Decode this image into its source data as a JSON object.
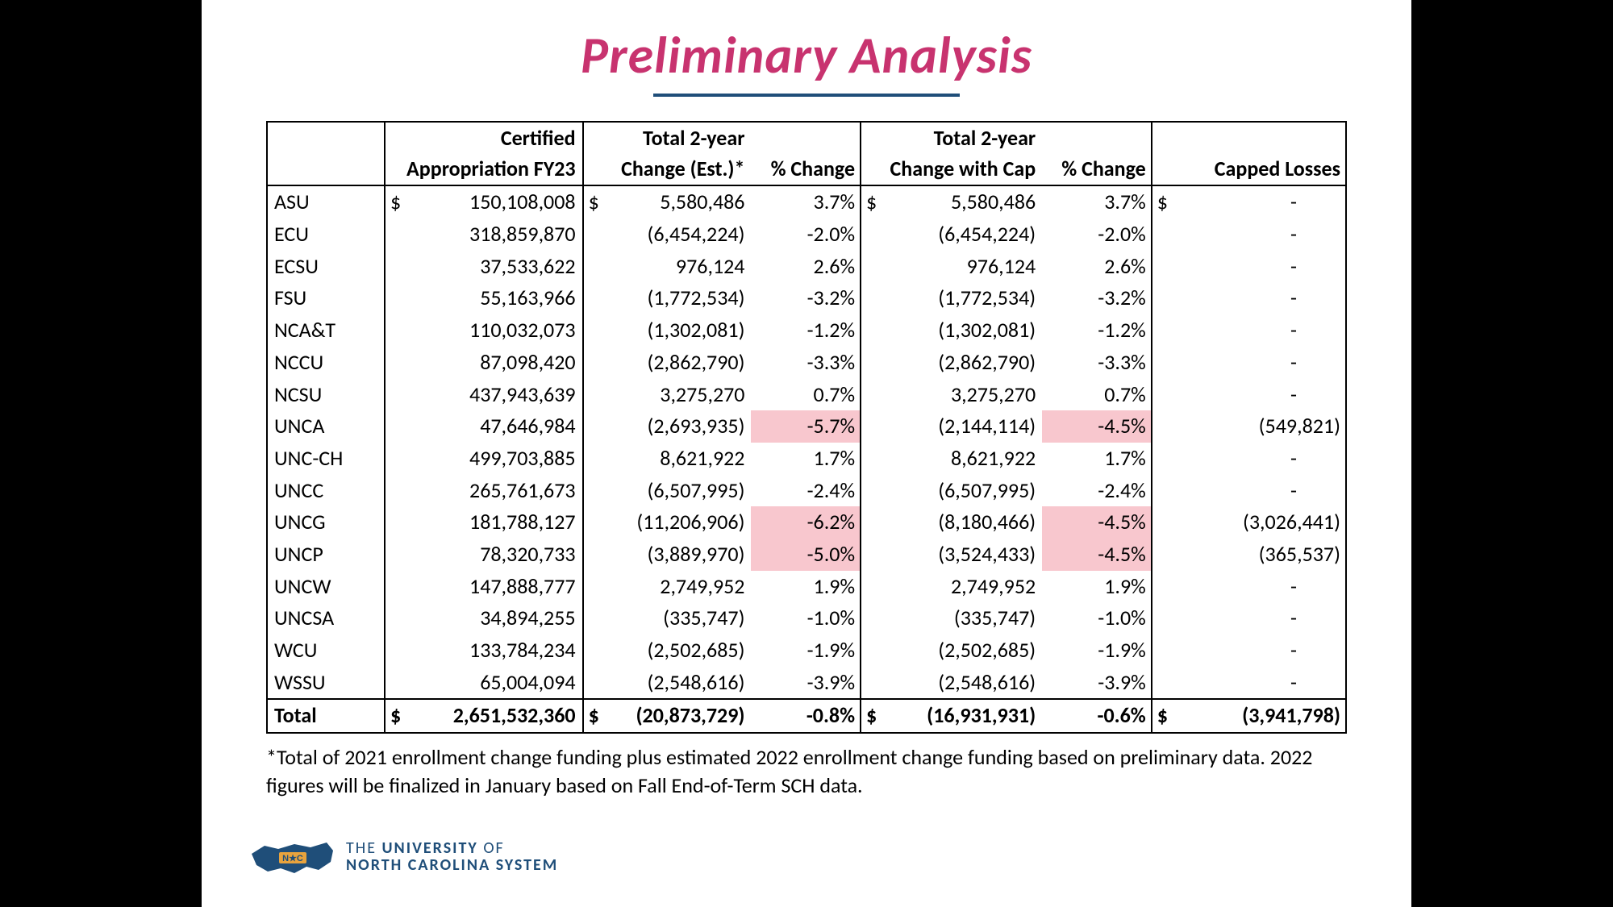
{
  "title": "Preliminary Analysis",
  "colors": {
    "title": "#c8336f",
    "underline": "#1f4e79",
    "highlight": "#f8c7ce",
    "border": "#000000",
    "background": "#ffffff",
    "page_bg": "#000000"
  },
  "table": {
    "headers": {
      "inst": "",
      "appr_line1": "Certified",
      "appr_line2": "Appropriation FY23",
      "chg1_line1": "Total 2-year",
      "chg1_line2": "Change (Est.)*",
      "pct1": "% Change",
      "chg2_line1": "Total 2-year",
      "chg2_line2": "Change with Cap",
      "pct2": "% Change",
      "cap": "Capped Losses"
    },
    "rows": [
      {
        "inst": "ASU",
        "appr": "150,108,008",
        "appr_dollar": true,
        "chg1": "5,580,486",
        "chg1_dollar": true,
        "pct1": "3.7%",
        "pct1_hl": false,
        "chg2": "5,580,486",
        "chg2_dollar": true,
        "pct2": "3.7%",
        "pct2_hl": false,
        "cap": "-",
        "cap_dollar": true
      },
      {
        "inst": "ECU",
        "appr": "318,859,870",
        "chg1": "(6,454,224)",
        "pct1": "-2.0%",
        "chg2": "(6,454,224)",
        "pct2": "-2.0%",
        "cap": "-"
      },
      {
        "inst": "ECSU",
        "appr": "37,533,622",
        "chg1": "976,124",
        "pct1": "2.6%",
        "chg2": "976,124",
        "pct2": "2.6%",
        "cap": "-"
      },
      {
        "inst": "FSU",
        "appr": "55,163,966",
        "chg1": "(1,772,534)",
        "pct1": "-3.2%",
        "chg2": "(1,772,534)",
        "pct2": "-3.2%",
        "cap": "-"
      },
      {
        "inst": "NCA&T",
        "appr": "110,032,073",
        "chg1": "(1,302,081)",
        "pct1": "-1.2%",
        "chg2": "(1,302,081)",
        "pct2": "-1.2%",
        "cap": "-"
      },
      {
        "inst": "NCCU",
        "appr": "87,098,420",
        "chg1": "(2,862,790)",
        "pct1": "-3.3%",
        "chg2": "(2,862,790)",
        "pct2": "-3.3%",
        "cap": "-"
      },
      {
        "inst": "NCSU",
        "appr": "437,943,639",
        "chg1": "3,275,270",
        "pct1": "0.7%",
        "chg2": "3,275,270",
        "pct2": "0.7%",
        "cap": "-"
      },
      {
        "inst": "UNCA",
        "appr": "47,646,984",
        "chg1": "(2,693,935)",
        "pct1": "-5.7%",
        "pct1_hl": true,
        "chg2": "(2,144,114)",
        "pct2": "-4.5%",
        "pct2_hl": true,
        "cap": "(549,821)"
      },
      {
        "inst": "UNC-CH",
        "appr": "499,703,885",
        "chg1": "8,621,922",
        "pct1": "1.7%",
        "chg2": "8,621,922",
        "pct2": "1.7%",
        "cap": "-"
      },
      {
        "inst": "UNCC",
        "appr": "265,761,673",
        "chg1": "(6,507,995)",
        "pct1": "-2.4%",
        "chg2": "(6,507,995)",
        "pct2": "-2.4%",
        "cap": "-"
      },
      {
        "inst": "UNCG",
        "appr": "181,788,127",
        "chg1": "(11,206,906)",
        "pct1": "-6.2%",
        "pct1_hl": true,
        "chg2": "(8,180,466)",
        "pct2": "-4.5%",
        "pct2_hl": true,
        "cap": "(3,026,441)"
      },
      {
        "inst": "UNCP",
        "appr": "78,320,733",
        "chg1": "(3,889,970)",
        "pct1": "-5.0%",
        "pct1_hl": true,
        "chg2": "(3,524,433)",
        "pct2": "-4.5%",
        "pct2_hl": true,
        "cap": "(365,537)"
      },
      {
        "inst": "UNCW",
        "appr": "147,888,777",
        "chg1": "2,749,952",
        "pct1": "1.9%",
        "chg2": "2,749,952",
        "pct2": "1.9%",
        "cap": "-"
      },
      {
        "inst": "UNCSA",
        "appr": "34,894,255",
        "chg1": "(335,747)",
        "pct1": "-1.0%",
        "chg2": "(335,747)",
        "pct2": "-1.0%",
        "cap": "-"
      },
      {
        "inst": "WCU",
        "appr": "133,784,234",
        "chg1": "(2,502,685)",
        "pct1": "-1.9%",
        "chg2": "(2,502,685)",
        "pct2": "-1.9%",
        "cap": "-"
      },
      {
        "inst": "WSSU",
        "appr": "65,004,094",
        "chg1": "(2,548,616)",
        "pct1": "-3.9%",
        "chg2": "(2,548,616)",
        "pct2": "-3.9%",
        "cap": "-"
      }
    ],
    "total": {
      "inst": "Total",
      "appr": "2,651,532,360",
      "appr_dollar": true,
      "chg1": "(20,873,729)",
      "chg1_dollar": true,
      "pct1": "-0.8%",
      "chg2": "(16,931,931)",
      "chg2_dollar": true,
      "pct2": "-0.6%",
      "cap": "(3,941,798)",
      "cap_dollar": true
    }
  },
  "footnote": "*Total of 2021 enrollment change funding plus estimated 2022 enrollment change funding based on preliminary data. 2022 figures will be finalized in January based on Fall End-of-Term SCH data.",
  "footer": {
    "line1_a": "THE ",
    "line1_b": "UNIVERSITY",
    "line1_c": " OF",
    "line2": "NORTH CAROLINA SYSTEM",
    "logo_badge": "N★C"
  }
}
